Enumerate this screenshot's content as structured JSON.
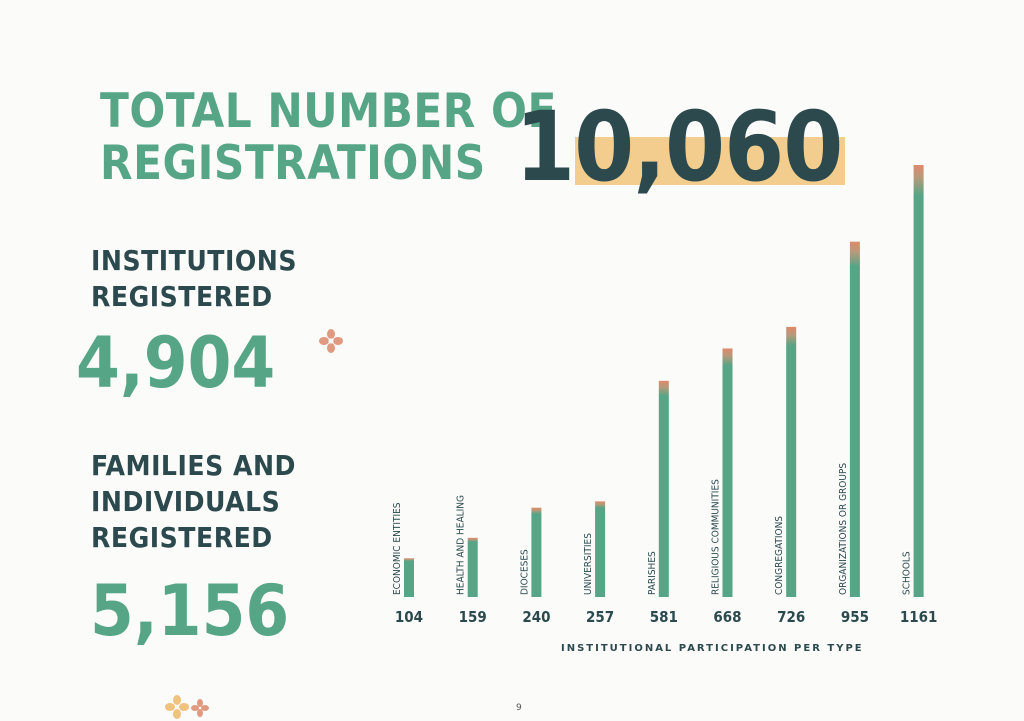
{
  "heading": "TOTAL NUMBER OF\nREGISTRATIONS",
  "total_registrations": "10,060",
  "institutions": {
    "label": "INSTITUTIONS\nREGISTERED",
    "value": "4,904"
  },
  "families": {
    "label": "FAMILIES AND\nINDIVIDUALS\nREGISTERED",
    "value": "5,156"
  },
  "page_number": "9",
  "colors": {
    "green": "#55a586",
    "dark": "#2c4a4d",
    "highlight": "#f3cd8e",
    "bar_tip": "#e08a6a"
  },
  "chart_data": {
    "type": "bar",
    "orientation": "vertical",
    "categories": [
      "ECONOMIC ENTITIES",
      "HEALTH AND HEALING",
      "DIOCESES",
      "UNIVERSITIES",
      "PARISHES",
      "RELIGIOUS COMMUNITIES",
      "CONGREGATIONS",
      "ORGANIZATIONS OR GROUPS",
      "SCHOOLS"
    ],
    "values": [
      104,
      159,
      240,
      257,
      581,
      668,
      726,
      955,
      1161
    ],
    "xlabel": "INSTITUTIONAL PARTICIPATION PER TYPE",
    "ylabel": "",
    "grid": false,
    "value_labels_position": "below-bars"
  }
}
